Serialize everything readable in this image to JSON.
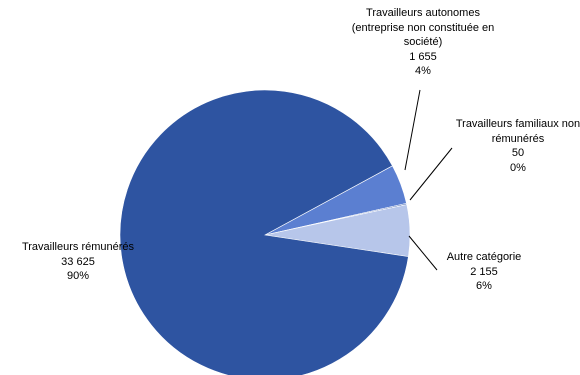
{
  "chart_data": {
    "type": "pie",
    "slices": [
      {
        "label_lines": [
          "Travailleurs autonomes",
          "(entreprise non constituée en",
          "société)"
        ],
        "value_text": "1 655",
        "value": 1655,
        "percent_text": "4%",
        "color": "#5b7fd1"
      },
      {
        "label_lines": [
          "Travailleurs familiaux non",
          "rémunérés"
        ],
        "value_text": "50",
        "value": 50,
        "percent_text": "0%",
        "color": "#3a5dab"
      },
      {
        "label_lines": [
          "Autre catégorie"
        ],
        "value_text": "2 155",
        "value": 2155,
        "percent_text": "6%",
        "color": "#b7c6ea"
      },
      {
        "label_lines": [
          "Travailleurs rémunérés"
        ],
        "value_text": "33 625",
        "value": 33625,
        "percent_text": "90%",
        "color": "#2e54a1"
      }
    ]
  }
}
